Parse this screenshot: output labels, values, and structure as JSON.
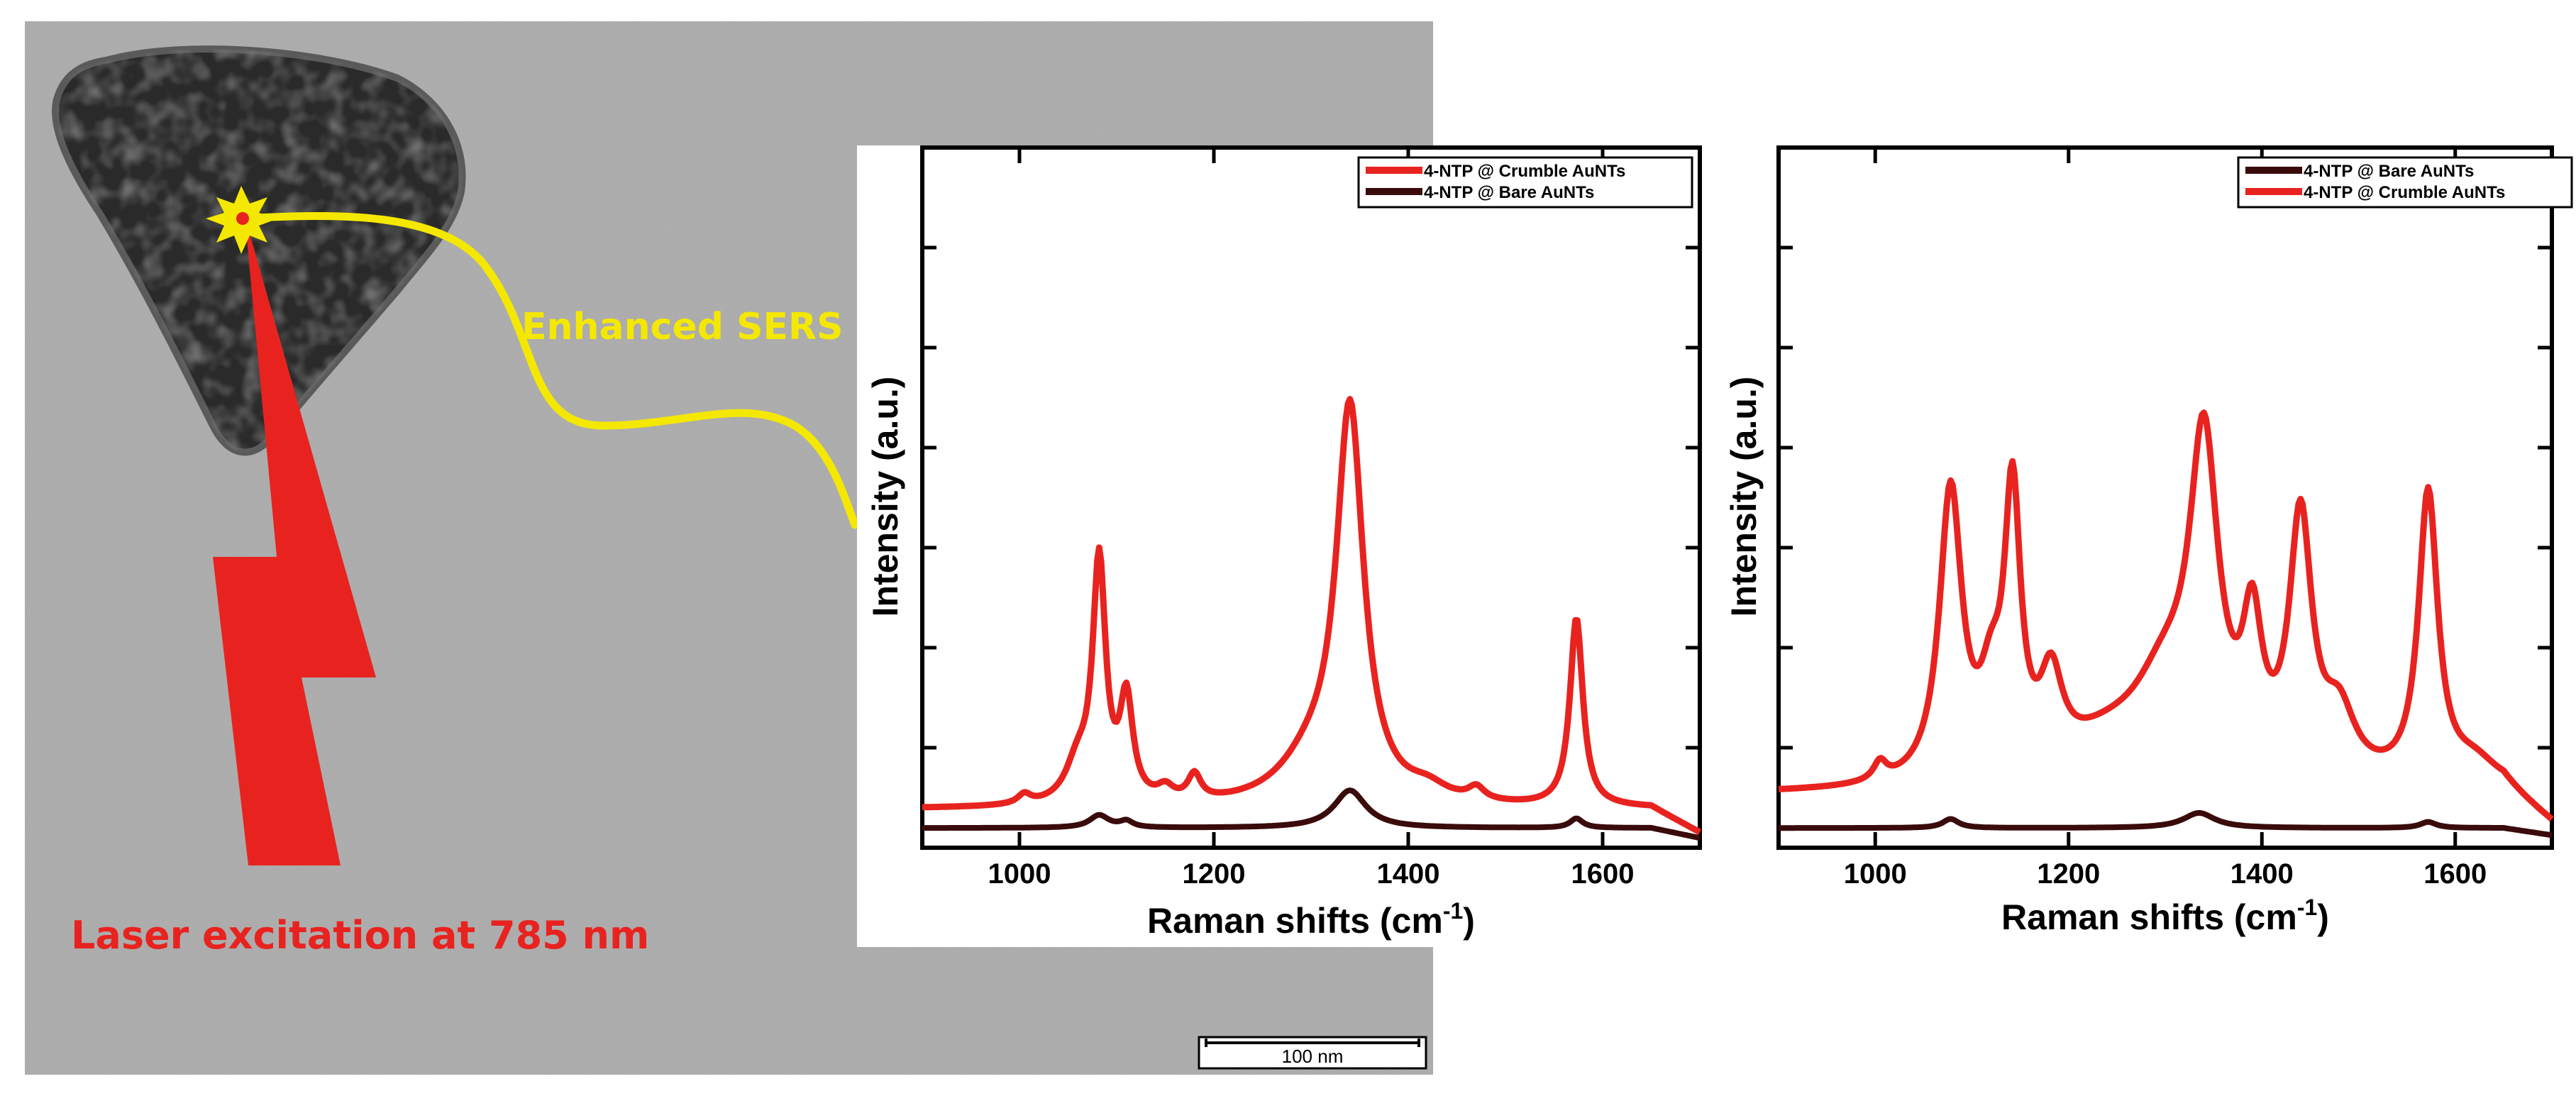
{
  "figure": {
    "annotations": {
      "enhanced_sers": "Enhanced SERS",
      "laser": "Laser excitation at 785 nm",
      "scale_bar": "100 nm"
    },
    "colors": {
      "red": "#e8231f",
      "dark": "#3a0b0b",
      "yellow": "#f5e800"
    }
  },
  "chart_data": [
    {
      "type": "line",
      "title": "",
      "xlabel": "Raman shifts (cm",
      "xlabel_sup": "-1",
      "xlabel_close": ")",
      "ylabel": "Intensity (a.u.)",
      "xlim": [
        900,
        1700
      ],
      "ylim": [
        0,
        100
      ],
      "xticks": [
        1000,
        1200,
        1400,
        1600
      ],
      "legend": [
        "4-NTP @ Crumble AuNTs",
        "4-NTP @ Bare AuNTs"
      ],
      "series": [
        {
          "name": "4-NTP @ Crumble AuNTs",
          "color": "#e8231f",
          "baseline": 5,
          "peaks": [
            [
              1005,
              1.5,
              8
            ],
            [
              1060,
              6,
              15
            ],
            [
              1082,
              38,
              8
            ],
            [
              1110,
              16,
              8
            ],
            [
              1150,
              2,
              10
            ],
            [
              1180,
              4,
              8
            ],
            [
              1300,
              6,
              40
            ],
            [
              1340,
              62,
              17
            ],
            [
              1420,
              2,
              25
            ],
            [
              1470,
              2,
              10
            ],
            [
              1573,
              30,
              8
            ]
          ]
        },
        {
          "name": "4-NTP @ Bare AuNTs",
          "color": "#3a0b0b",
          "baseline": 2,
          "peaks": [
            [
              1082,
              2,
              12
            ],
            [
              1110,
              1,
              8
            ],
            [
              1340,
              6,
              20
            ],
            [
              1573,
              1.5,
              8
            ]
          ]
        }
      ]
    },
    {
      "type": "line",
      "title": "",
      "xlabel": "Raman shifts (cm",
      "xlabel_sup": "-1",
      "xlabel_close": ")",
      "ylabel": "Intensity (a.u.)",
      "xlim": [
        900,
        1700
      ],
      "ylim": [
        0,
        100
      ],
      "xticks": [
        1000,
        1200,
        1400,
        1600
      ],
      "legend": [
        "4-NTP @ Bare AuNTs",
        "4-NTP @ Crumble AuNTs"
      ],
      "series": [
        {
          "name": "4-NTP @ Bare AuNTs",
          "color": "#3a0b0b",
          "baseline": 1.5,
          "peaks": [
            [
              1078,
              1.5,
              10
            ],
            [
              1335,
              2.5,
              20
            ],
            [
              1572,
              1,
              10
            ]
          ]
        },
        {
          "name": "4-NTP @ Crumble AuNTs",
          "color": "#e8231f",
          "baseline": 7,
          "peaks": [
            [
              1005,
              3,
              8
            ],
            [
              1078,
              48,
              14
            ],
            [
              1120,
              12,
              14
            ],
            [
              1142,
              45,
              10
            ],
            [
              1182,
              14,
              14
            ],
            [
              1240,
              6,
              60
            ],
            [
              1300,
              14,
              40
            ],
            [
              1340,
              52,
              18
            ],
            [
              1390,
              22,
              12
            ],
            [
              1440,
              42,
              14
            ],
            [
              1480,
              10,
              20
            ],
            [
              1572,
              48,
              12
            ],
            [
              1620,
              4,
              30
            ]
          ]
        }
      ]
    }
  ]
}
